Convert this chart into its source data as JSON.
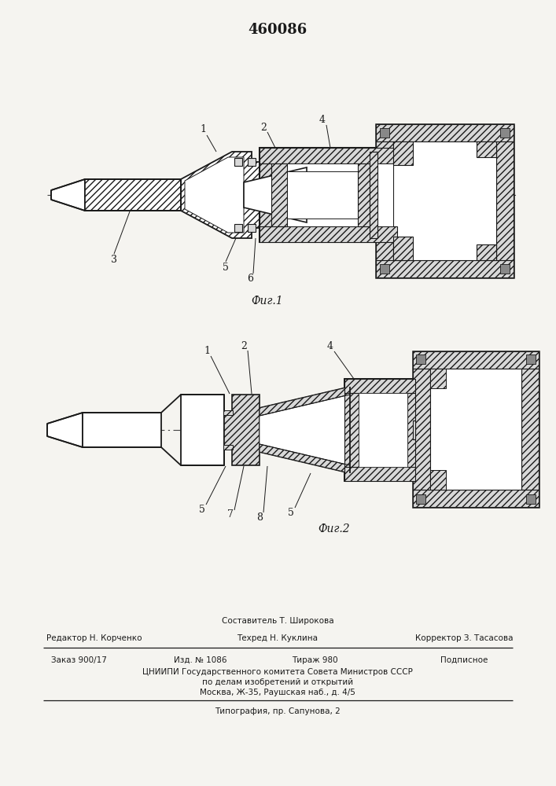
{
  "title": "460086",
  "bg_color": "#f5f4f0",
  "line_color": "#1a1a1a",
  "hatch_color": "#333333",
  "white_fill": "#ffffff",
  "gray_fill": "#d8d8d8",
  "footer_compositor": "Составитель Т. Широкова",
  "footer_editor": "Редактор Н. Корченко",
  "footer_tech": "Техред Н. Куклина",
  "footer_corrector": "Корректор З. Тасасова",
  "footer_order": "Заказ 900/17",
  "footer_izd": "Изд. № 1086",
  "footer_tiraj": "Тираж 980",
  "footer_podp": "Подписное",
  "footer_org": "ЦНИИПИ Государственного комитета Совета Министров СССР",
  "footer_affairs": "по делам изобретений и открытий",
  "footer_address": "Москва, Ж-35, Раушская наб., д. 4/5",
  "footer_typography": "Типография, пр. Сапунова, 2"
}
